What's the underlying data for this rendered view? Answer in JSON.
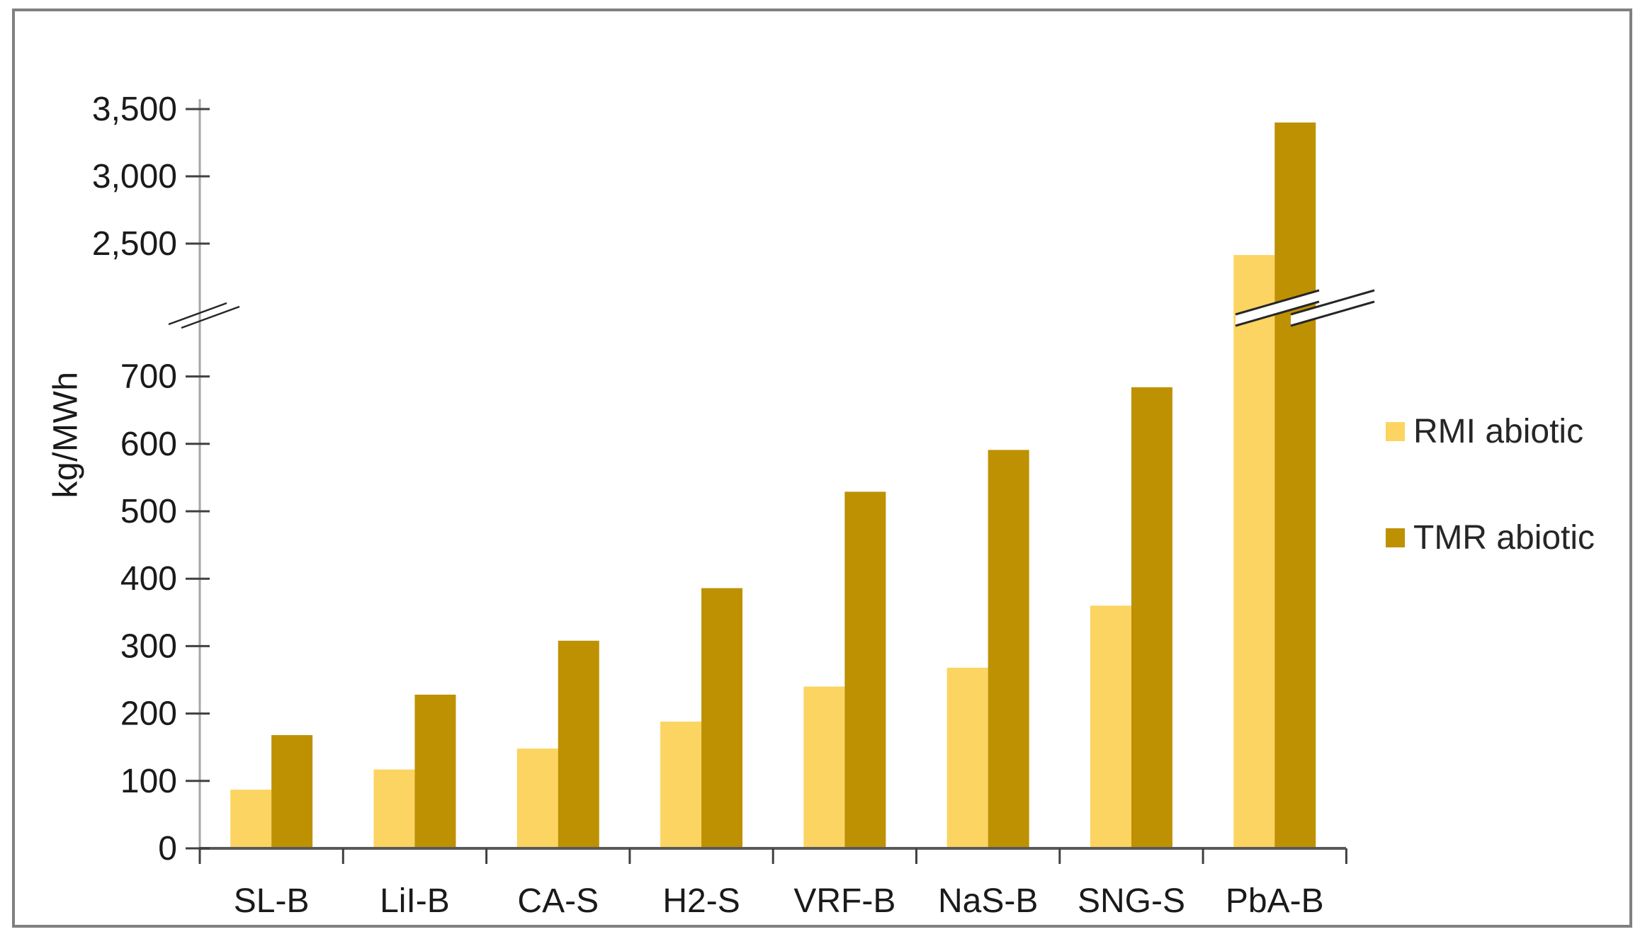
{
  "chart_data": {
    "type": "bar",
    "title": "",
    "ylabel": "kg/MWh",
    "xlabel": "",
    "categories": [
      "SL-B",
      "LiI-B",
      "CA-S",
      "H2-S",
      "VRF-B",
      "NaS-B",
      "SNG-S",
      "PbA-B"
    ],
    "series": [
      {
        "name": "RMI abiotic",
        "color": "#FCD462",
        "values": [
          87,
          117,
          148,
          188,
          240,
          268,
          360,
          2415
        ]
      },
      {
        "name": "TMR abiotic",
        "color": "#BE9103",
        "values": [
          168,
          228,
          308,
          386,
          529,
          591,
          684,
          3400
        ]
      }
    ],
    "unit": "kg/MWh",
    "axis_break": {
      "enabled": true,
      "lower_axis_range": [
        0,
        750
      ],
      "upper_axis_range": [
        2400,
        3550
      ]
    },
    "yticks_lower": [
      0,
      100,
      200,
      300,
      400,
      500,
      600,
      700
    ],
    "yticks_upper": [
      2500,
      3000,
      3500
    ],
    "ytick_labels_lower": [
      "0",
      "100",
      "200",
      "300",
      "400",
      "500",
      "600",
      "700"
    ],
    "ytick_labels_upper": [
      "2,500",
      "3,000",
      "3,500"
    ],
    "grid": "off",
    "legend_position": "right",
    "colors": {
      "axis_line": "#A6A6A6",
      "baseline": "#595959",
      "tick": "#404040",
      "text": "#1a1a1a",
      "frame_border": "#808080",
      "background": "#ffffff",
      "break_mark": "#262626"
    }
  }
}
